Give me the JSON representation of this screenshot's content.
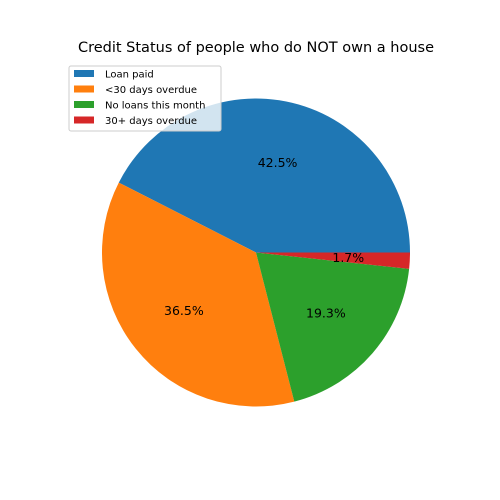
{
  "chart_data": {
    "type": "pie",
    "title": "Credit Status of people who do NOT own a house",
    "slices": [
      {
        "label": "Loan paid",
        "value": 42.5,
        "display": "42.5%",
        "color": "#1f77b4"
      },
      {
        "label": "<30 days overdue",
        "value": 36.5,
        "display": "36.5%",
        "color": "#ff7f0e"
      },
      {
        "label": "No loans this month",
        "value": 19.3,
        "display": "19.3%",
        "color": "#2ca02c"
      },
      {
        "label": "30+ days overdue",
        "value": 1.7,
        "display": "1.7%",
        "color": "#d62728"
      }
    ],
    "start_angle_deg": 0,
    "direction": "counterclockwise",
    "legend_placement": "upper-left"
  }
}
